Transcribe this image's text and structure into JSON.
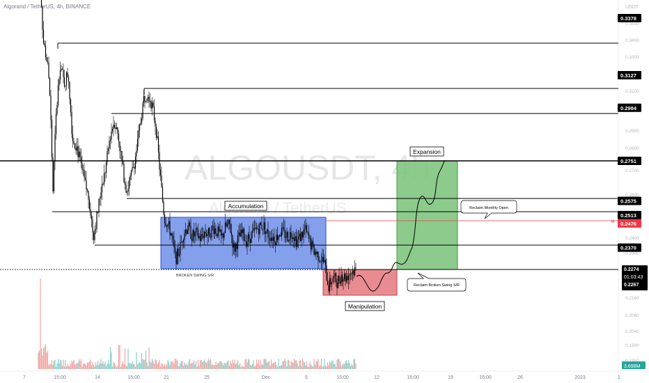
{
  "header": {
    "title": "Algorand / TetherUS, 4h, BINANCE"
  },
  "watermark": {
    "symbol": "ALGOUSDT, 4h",
    "name": "Algorand / TetherUS"
  },
  "chart_data": {
    "type": "candlestick",
    "pair": "ALGOUSDT",
    "timeframe": "4h",
    "exchange": "BINANCE",
    "y_unit_label": "USDT",
    "ylim": [
      0.183,
      0.3615
    ],
    "x_ticks": [
      "7",
      "15:00",
      "14",
      "15:00",
      "21",
      "25",
      "Dec",
      "5",
      "15:00",
      "12",
      "15:00",
      "19",
      "15:00",
      "26",
      "2023",
      "1"
    ],
    "y_ticks": [
      "0.3500",
      "0.3400",
      "0.3300",
      "0.3200",
      "0.3100",
      "0.3000",
      "0.2900",
      "0.2800",
      "0.2700",
      "0.2600",
      "0.2500",
      "0.2400",
      "0.2300",
      "0.2200",
      "0.2160",
      "0.2080",
      "0.2040",
      "0.1990",
      "0.1950"
    ],
    "levels": [
      {
        "label": "0.3378",
        "value": 0.3378
      },
      {
        "label": "0.3127",
        "value": 0.3127
      },
      {
        "label": "0.2984",
        "value": 0.2984
      },
      {
        "label": "0.2751",
        "value": 0.2751
      },
      {
        "label": "0.2575",
        "value": 0.2575
      },
      {
        "label": "0.2513",
        "value": 0.2513
      },
      {
        "label": "0.2476",
        "value": 0.2476
      },
      {
        "label": "0.2370",
        "value": 0.237
      }
    ],
    "current_price": {
      "price": "0.2274",
      "countdown": "01:03:43",
      "bid": "0.2267"
    },
    "volume_label": "3.698M",
    "zones": [
      {
        "name": "Accumulation",
        "color": "#4169e1"
      },
      {
        "name": "Manipulation",
        "color": "#e06c6c"
      },
      {
        "name": "Expansion",
        "color": "#4caf50"
      }
    ],
    "annotations": [
      "Reclaim Monthly Open",
      "Reclaim Broken Swing S/R",
      "BROKEN SWING S/R",
      "M"
    ]
  },
  "colors": {
    "bull": "#26a69a",
    "bear": "#ef5350",
    "label_bg": "#000000",
    "monthly_open": "#f23645",
    "accumulation_fill": "#6f8ee8",
    "manipulation_fill": "#e57f85",
    "expansion_fill": "#7fc580"
  }
}
